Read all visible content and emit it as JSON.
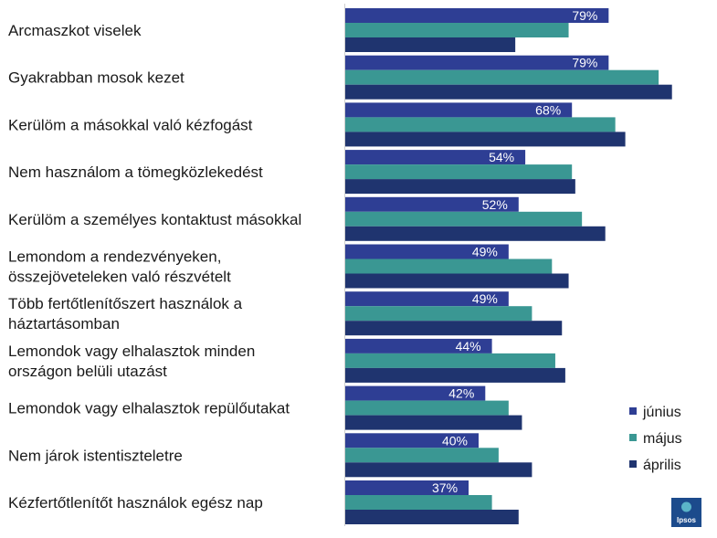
{
  "chart_data": {
    "type": "bar",
    "orientation": "horizontal",
    "categories": [
      [
        "Arcmaszkot viselek"
      ],
      [
        "Gyakrabban mosok kezet"
      ],
      [
        "Kerülöm a másokkal való kézfogást"
      ],
      [
        "Nem használom a tömegközlekedést"
      ],
      [
        "Kerülöm a személyes kontaktust másokkal"
      ],
      [
        "Lemondom a rendezvényeken,",
        "összejöveteleken való részvételt"
      ],
      [
        "Több fertőtlenítőszert használok a",
        "háztartásomban"
      ],
      [
        "Lemondok vagy elhalasztok minden",
        "országon belüli utazást"
      ],
      [
        "Lemondok vagy elhalasztok repülőutakat"
      ],
      [
        "Nem járok istentiszteletre"
      ],
      [
        "Kézfertőtlenítőt használok egész nap"
      ]
    ],
    "series": [
      {
        "name": "június",
        "color": "#2e3e94",
        "values": [
          79,
          79,
          68,
          54,
          52,
          49,
          49,
          44,
          42,
          40,
          37
        ],
        "labels": [
          "79%",
          "79%",
          "68%",
          "54%",
          "52%",
          "49%",
          "49%",
          "44%",
          "42%",
          "40%",
          "37%"
        ]
      },
      {
        "name": "május",
        "color": "#3a9793",
        "values": [
          67,
          94,
          81,
          68,
          71,
          62,
          56,
          63,
          49,
          46,
          44
        ]
      },
      {
        "name": "április",
        "color": "#1f346f",
        "values": [
          51,
          98,
          84,
          69,
          78,
          67,
          65,
          66,
          53,
          56,
          52
        ]
      }
    ],
    "xlim": [
      0,
      100
    ],
    "grid": false,
    "legend_position": "bottom-right"
  },
  "logo": {
    "name": "ipsos-logo",
    "text": "Ipsos",
    "color": "#1c4b8c"
  }
}
